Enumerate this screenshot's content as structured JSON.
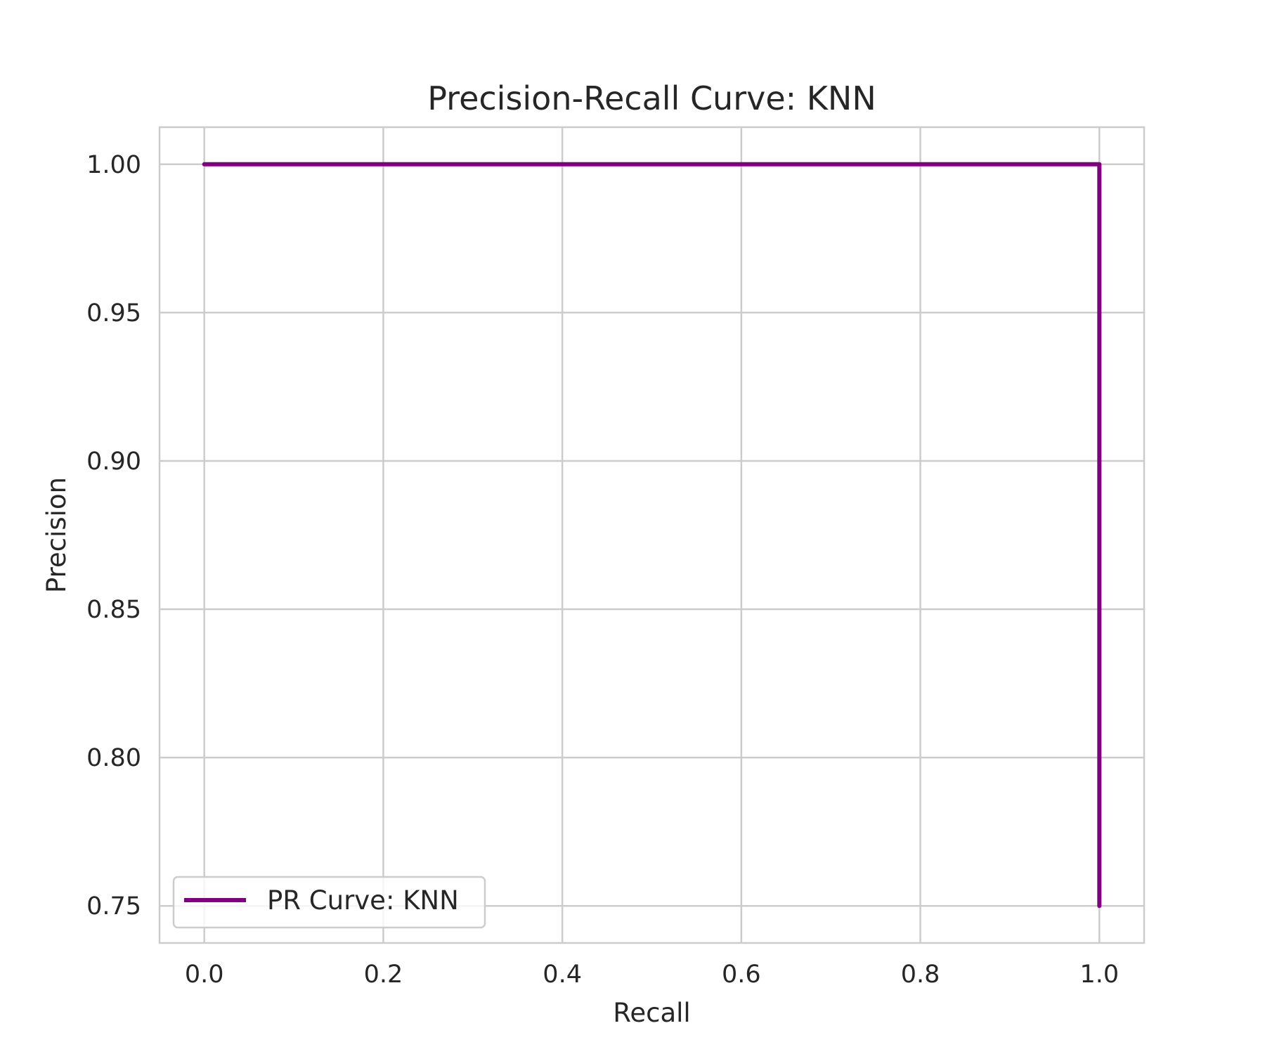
{
  "chart_data": {
    "type": "line",
    "title": "Precision-Recall Curve: KNN",
    "xlabel": "Recall",
    "ylabel": "Precision",
    "xlim": [
      -0.05,
      1.05
    ],
    "ylim": [
      0.7375,
      1.0125
    ],
    "xticks": [
      0.0,
      0.2,
      0.4,
      0.6,
      0.8,
      1.0
    ],
    "xtick_labels": [
      "0.0",
      "0.2",
      "0.4",
      "0.6",
      "0.8",
      "1.0"
    ],
    "yticks": [
      0.75,
      0.8,
      0.85,
      0.9,
      0.95,
      1.0
    ],
    "ytick_labels": [
      "0.75",
      "0.80",
      "0.85",
      "0.90",
      "0.95",
      "1.00"
    ],
    "grid": true,
    "legend_position": "lower-left",
    "series": [
      {
        "name": "PR Curve: KNN",
        "color": "#800080",
        "x": [
          0.0,
          1.0,
          1.0
        ],
        "y": [
          1.0,
          1.0,
          0.75
        ]
      }
    ]
  }
}
